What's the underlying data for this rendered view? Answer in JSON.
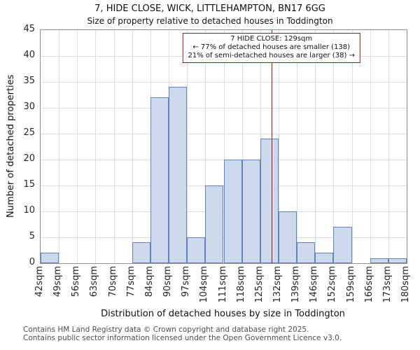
{
  "title": "7, HIDE CLOSE, WICK, LITTLEHAMPTON, BN17 6GG",
  "subtitle": "Size of property relative to detached houses in Toddington",
  "footer": {
    "line1": "Contains HM Land Registry data © Crown copyright and database right 2025.",
    "line2": "Contains public sector information licensed under the Open Government Licence v3.0."
  },
  "chart_data": {
    "type": "bar",
    "title": "7, HIDE CLOSE, WICK, LITTLEHAMPTON, BN17 6GG",
    "subtitle": "Size of property relative to detached houses in Toddington",
    "xlabel": "Distribution of detached houses by size in Toddington",
    "ylabel": "Number of detached properties",
    "ylim": [
      0,
      45
    ],
    "yticks": [
      0,
      5,
      10,
      15,
      20,
      25,
      30,
      35,
      40,
      45
    ],
    "categories": [
      "42sqm",
      "49sqm",
      "56sqm",
      "63sqm",
      "70sqm",
      "77sqm",
      "84sqm",
      "90sqm",
      "97sqm",
      "104sqm",
      "111sqm",
      "118sqm",
      "125sqm",
      "132sqm",
      "139sqm",
      "146sqm",
      "152sqm",
      "159sqm",
      "166sqm",
      "173sqm",
      "180sqm"
    ],
    "values": [
      2,
      0,
      0,
      0,
      0,
      4,
      32,
      34,
      5,
      15,
      20,
      20,
      24,
      10,
      4,
      2,
      7,
      0,
      1,
      1
    ],
    "grid": true,
    "legend": false,
    "bar_fill": "#cdd9ec",
    "bar_border": "#5b84c4",
    "grid_color": "#d8dde6",
    "marker": {
      "value_sqm": 129,
      "x_min_sqm": 42,
      "x_max_sqm": 180,
      "color": "#aa1111",
      "label_lines": [
        "7 HIDE CLOSE: 129sqm",
        "← 77% of detached houses are smaller (138)",
        "21% of semi-detached houses are larger (38) →"
      ]
    }
  }
}
